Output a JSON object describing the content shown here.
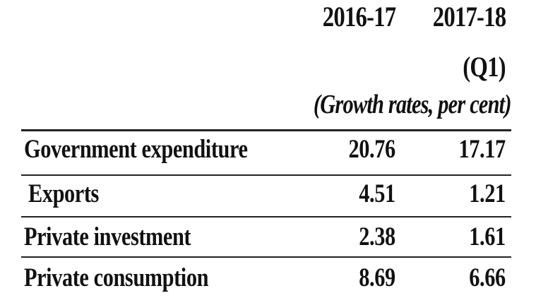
{
  "chart_data": {
    "type": "table",
    "columns": [
      "2016-17",
      "2017-18"
    ],
    "column_note": "(Q1)",
    "unit": "(Growth rates, per cent)",
    "rows": [
      {
        "label": "Government expenditure",
        "values": [
          "20.76",
          "17.17"
        ]
      },
      {
        "label": "Exports",
        "values": [
          "4.51",
          "1.21"
        ]
      },
      {
        "label": "Private investment",
        "values": [
          "2.38",
          "1.61"
        ]
      },
      {
        "label": "Private consumption",
        "values": [
          "8.69",
          "6.66"
        ]
      }
    ]
  }
}
